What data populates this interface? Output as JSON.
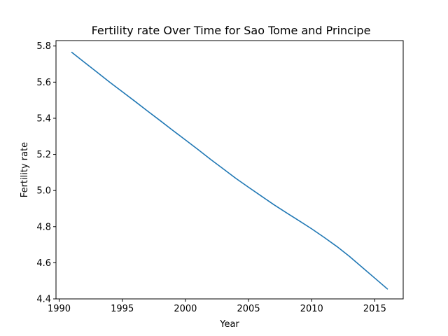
{
  "chart_data": {
    "type": "line",
    "title": "Fertility rate Over Time for Sao Tome and Principe",
    "xlabel": "Year",
    "ylabel": "Fertility rate",
    "xlim": [
      1989.75,
      2017.25
    ],
    "ylim": [
      4.4,
      5.83
    ],
    "xticks": [
      1990,
      1995,
      2000,
      2005,
      2010,
      2015
    ],
    "yticks": [
      4.4,
      4.6,
      4.8,
      5.0,
      5.2,
      5.4,
      5.6,
      5.8
    ],
    "grid": false,
    "colors": {
      "series": "#1f77b4"
    },
    "series": [
      {
        "x": [
          1991,
          1992,
          1993,
          1994,
          1995,
          1996,
          1997,
          1998,
          1999,
          2000,
          2001,
          2002,
          2003,
          2004,
          2005,
          2006,
          2007,
          2008,
          2009,
          2010,
          2011,
          2012,
          2013,
          2014,
          2015,
          2016
        ],
        "y": [
          5.765,
          5.71,
          5.655,
          5.6,
          5.547,
          5.494,
          5.44,
          5.387,
          5.333,
          5.28,
          5.227,
          5.172,
          5.12,
          5.067,
          5.018,
          4.97,
          4.922,
          4.877,
          4.833,
          4.788,
          4.74,
          4.69,
          4.635,
          4.575,
          4.515,
          4.455
        ]
      }
    ]
  }
}
